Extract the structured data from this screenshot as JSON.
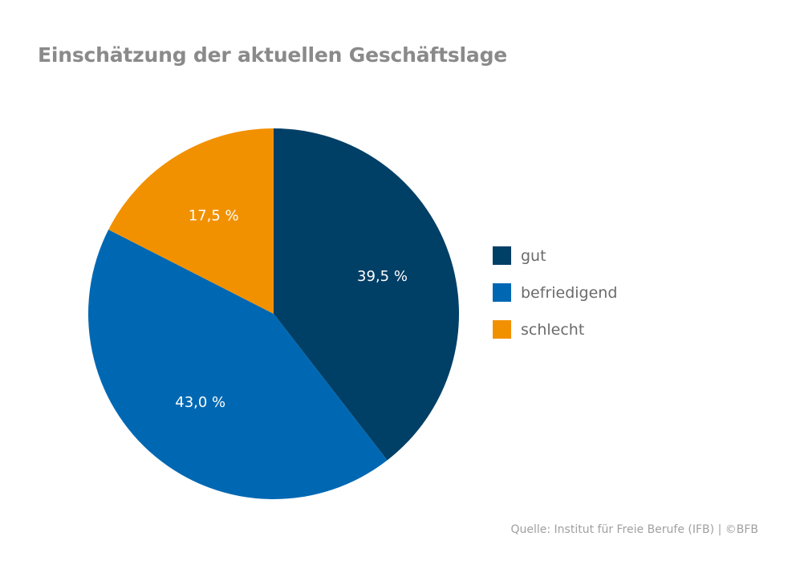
{
  "chart_data": {
    "type": "pie",
    "title": "Einschätzung der aktuellen Geschäftslage",
    "categories": [
      "gut",
      "befriedigend",
      "schlecht"
    ],
    "values": [
      39.5,
      43.0,
      17.5
    ],
    "labels": [
      "39,5 %",
      "43,0 %",
      "17,5 %"
    ],
    "colors": [
      "#003f66",
      "#0068b3",
      "#f29100"
    ],
    "start": "12 o'clock",
    "direction": "clockwise",
    "legend_position": "right"
  },
  "source": "Quelle: Institut für Freie Berufe (IFB)  |  ©BFB"
}
